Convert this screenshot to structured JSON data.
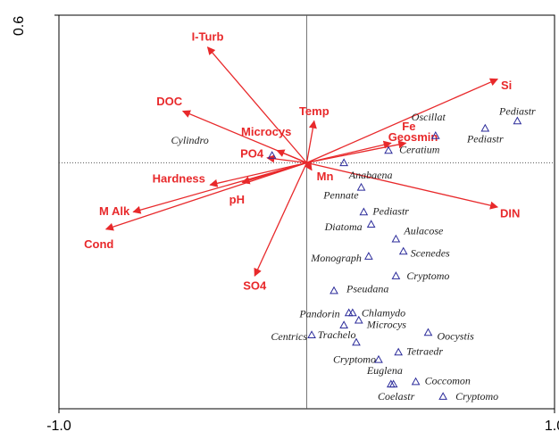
{
  "chart_data": {
    "type": "biplot",
    "xlim": [
      -1.0,
      1.0
    ],
    "ylim": [
      -1.0,
      0.6
    ],
    "xticks": [
      {
        "value": -1.0,
        "label": "-1.0"
      },
      {
        "value": 1.0,
        "label": "1.0"
      }
    ],
    "yticks": [
      {
        "value": 0.6,
        "label": "0.6"
      }
    ],
    "arrow_color": "#e8292b",
    "point_color": "#2b2b9a",
    "arrows": [
      {
        "name": "I-Turb",
        "x": -0.4,
        "y": 0.47
      },
      {
        "name": "DOC",
        "x": -0.5,
        "y": 0.21
      },
      {
        "name": "Microcys",
        "x": -0.12,
        "y": 0.05
      },
      {
        "name": "PO4",
        "x": -0.16,
        "y": 0.02
      },
      {
        "name": "Temp",
        "x": 0.03,
        "y": 0.17
      },
      {
        "name": "Fe",
        "x": 0.34,
        "y": 0.08
      },
      {
        "name": "Geosmin",
        "x": 0.4,
        "y": 0.08
      },
      {
        "name": "Si",
        "x": 0.77,
        "y": 0.34
      },
      {
        "name": "DIN",
        "x": 0.77,
        "y": -0.18
      },
      {
        "name": "Mn",
        "x": 0.02,
        "y": -0.03
      },
      {
        "name": "SO4",
        "x": -0.21,
        "y": -0.46
      },
      {
        "name": "pH",
        "x": -0.26,
        "y": -0.08
      },
      {
        "name": "Hardness",
        "x": -0.39,
        "y": -0.09
      },
      {
        "name": "M Alk",
        "x": -0.7,
        "y": -0.2
      },
      {
        "name": "Cond",
        "x": -0.81,
        "y": -0.27
      }
    ],
    "species": {
      "labels": [
        "Pediastr",
        "Pediastr",
        "Oscillat",
        "Ceratium",
        "Anabaena",
        "Cylindro",
        "Pennate",
        "Pediastr",
        "Diatoma",
        "Aulacose",
        "Scenedes",
        "Monograph",
        "Cryptomo",
        "Pseudana",
        "Pandorin",
        "Chlamydo",
        "Microcys",
        "Trachelo",
        "Centrics",
        null,
        "Oocystis",
        "Tetraedr",
        "Cryptomo",
        "Euglena",
        "Coccomon",
        "Coelastr",
        "Cryptomo"
      ],
      "x": [
        0.85,
        0.72,
        0.52,
        0.33,
        0.15,
        -0.14,
        0.22,
        0.23,
        0.26,
        0.36,
        0.39,
        0.25,
        0.36,
        0.11,
        0.17,
        0.185,
        0.21,
        0.15,
        0.02,
        0.2,
        0.49,
        0.37,
        0.29,
        0.34,
        0.44,
        0.35,
        0.55
      ],
      "y": [
        0.17,
        0.14,
        0.11,
        0.05,
        0.0,
        0.03,
        -0.1,
        -0.2,
        -0.25,
        -0.31,
        -0.36,
        -0.38,
        -0.46,
        -0.52,
        -0.61,
        -0.61,
        -0.64,
        -0.66,
        -0.7,
        -0.73,
        -0.69,
        -0.77,
        -0.8,
        -0.9,
        -0.89,
        -0.9,
        -0.95
      ]
    }
  }
}
